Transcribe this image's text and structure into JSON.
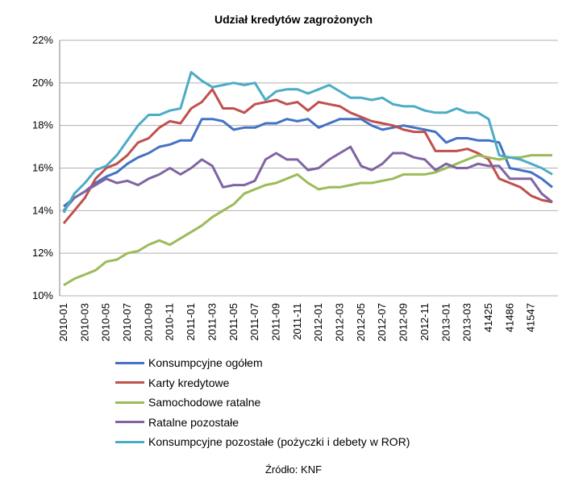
{
  "chart_data": {
    "type": "line",
    "title": "Udział kredytów zagrożonych",
    "source": "Źródło: KNF",
    "ylim": [
      10,
      22
    ],
    "y_ticks": [
      "10%",
      "12%",
      "14%",
      "16%",
      "18%",
      "20%",
      "22%"
    ],
    "y_tick_values": [
      10,
      12,
      14,
      16,
      18,
      20,
      22
    ],
    "grid": "horizontal",
    "legend_position": "bottom",
    "x_tick_labels": [
      "2010-01",
      "2010-03",
      "2010-05",
      "2010-07",
      "2010-09",
      "2010-11",
      "2011-01",
      "2011-03",
      "2011-05",
      "2011-07",
      "2011-09",
      "2011-11",
      "2012-01",
      "2012-03",
      "2012-05",
      "2012-07",
      "2012-09",
      "2012-11",
      "2013-01",
      "2013-03",
      "41425",
      "41486",
      "41547"
    ],
    "series": [
      {
        "name": "Konsumpcyjne ogółem",
        "color": "#4472C4",
        "values": [
          14.2,
          14.6,
          14.9,
          15.3,
          15.6,
          15.8,
          16.2,
          16.5,
          16.7,
          17.0,
          17.1,
          17.3,
          17.3,
          18.3,
          18.3,
          18.2,
          17.8,
          17.9,
          17.9,
          18.1,
          18.1,
          18.3,
          18.2,
          18.3,
          17.9,
          18.1,
          18.3,
          18.3,
          18.3,
          18.0,
          17.8,
          17.9,
          18.0,
          17.9,
          17.8,
          17.7,
          17.2,
          17.4,
          17.4,
          17.3,
          17.3,
          17.2,
          16.0,
          15.9,
          15.8,
          15.5,
          15.1
        ]
      },
      {
        "name": "Karty kredytowe",
        "color": "#C0504D",
        "values": [
          13.4,
          14.0,
          14.6,
          15.5,
          16.0,
          16.2,
          16.6,
          17.2,
          17.4,
          17.9,
          18.2,
          18.1,
          18.8,
          19.1,
          19.7,
          18.8,
          18.8,
          18.6,
          19.0,
          19.1,
          19.2,
          19.0,
          19.1,
          18.7,
          19.1,
          19.0,
          18.9,
          18.6,
          18.4,
          18.2,
          18.1,
          18.0,
          17.8,
          17.7,
          17.7,
          16.8,
          16.8,
          16.8,
          16.9,
          16.7,
          16.4,
          15.5,
          15.3,
          15.1,
          14.7,
          14.5,
          14.4
        ]
      },
      {
        "name": "Samochodowe ratalne",
        "color": "#9BBB59",
        "values": [
          10.5,
          10.8,
          11.0,
          11.2,
          11.6,
          11.7,
          12.0,
          12.1,
          12.4,
          12.6,
          12.4,
          12.7,
          13.0,
          13.3,
          13.7,
          14.0,
          14.3,
          14.8,
          15.0,
          15.2,
          15.3,
          15.5,
          15.7,
          15.3,
          15.0,
          15.1,
          15.1,
          15.2,
          15.3,
          15.3,
          15.4,
          15.5,
          15.7,
          15.7,
          15.7,
          15.8,
          16.0,
          16.2,
          16.4,
          16.6,
          16.5,
          16.4,
          16.5,
          16.5,
          16.6,
          16.6,
          16.6
        ]
      },
      {
        "name": "Ratalne pozostałe",
        "color": "#8064A2",
        "values": [
          14.0,
          14.6,
          14.9,
          15.2,
          15.5,
          15.3,
          15.4,
          15.2,
          15.5,
          15.7,
          16.0,
          15.7,
          16.0,
          16.4,
          16.1,
          15.1,
          15.2,
          15.2,
          15.4,
          16.4,
          16.7,
          16.4,
          16.4,
          15.9,
          16.0,
          16.4,
          16.7,
          17.0,
          16.1,
          15.9,
          16.2,
          16.7,
          16.7,
          16.5,
          16.4,
          15.9,
          16.2,
          16.0,
          16.0,
          16.2,
          16.1,
          16.1,
          15.5,
          15.5,
          15.5,
          14.8,
          14.4
        ]
      },
      {
        "name": "Konsumpcyjne pozostałe (pożyczki i debety w ROR)",
        "color": "#4BACC6",
        "values": [
          13.9,
          14.8,
          15.3,
          15.9,
          16.1,
          16.6,
          17.3,
          18.0,
          18.5,
          18.5,
          18.7,
          18.8,
          20.5,
          20.1,
          19.8,
          19.9,
          20.0,
          19.9,
          20.0,
          19.2,
          19.6,
          19.7,
          19.7,
          19.5,
          19.7,
          19.9,
          19.6,
          19.3,
          19.3,
          19.2,
          19.3,
          19.0,
          18.9,
          18.9,
          18.7,
          18.6,
          18.6,
          18.8,
          18.6,
          18.6,
          18.3,
          16.6,
          16.5,
          16.4,
          16.2,
          16.0,
          15.7
        ]
      }
    ]
  }
}
